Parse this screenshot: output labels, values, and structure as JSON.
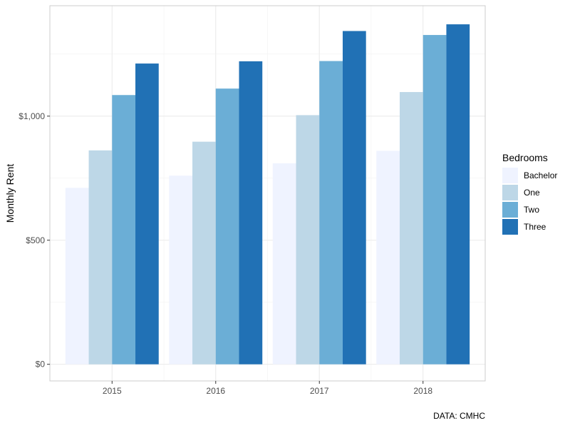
{
  "chart_data": {
    "type": "bar",
    "categories": [
      "2015",
      "2016",
      "2017",
      "2018"
    ],
    "series": [
      {
        "name": "Bachelor",
        "values": [
          711,
          760,
          810,
          860
        ],
        "color": "#eff3ff"
      },
      {
        "name": "One",
        "values": [
          862,
          897,
          1004,
          1097
        ],
        "color": "#bdd7e7"
      },
      {
        "name": "Two",
        "values": [
          1085,
          1111,
          1222,
          1327
        ],
        "color": "#6baed6"
      },
      {
        "name": "Three",
        "values": [
          1212,
          1221,
          1343,
          1370
        ],
        "color": "#2171b5"
      }
    ],
    "ylabel": "Monthly Rent",
    "xlabel": "",
    "ylim": [
      -67,
      1445
    ],
    "y_ticks": [
      0,
      500,
      1000
    ],
    "y_tick_labels": [
      "$0",
      "$500",
      "$1,000"
    ],
    "legend": {
      "title": "Bedrooms",
      "position": "right"
    },
    "caption": "DATA: CMHC",
    "grid": true
  }
}
